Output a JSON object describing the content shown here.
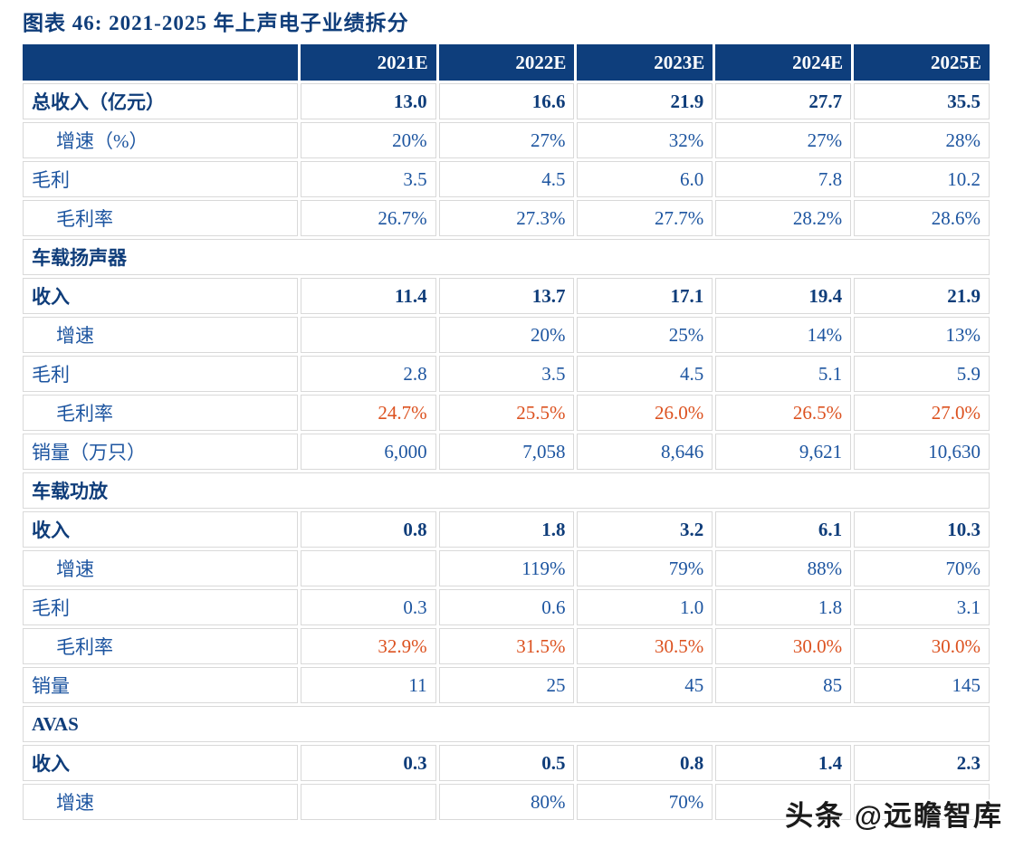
{
  "title": "图表 46: 2021-2025 年上声电子业绩拆分",
  "watermark": {
    "text": "头条 @远瞻智库"
  },
  "colors": {
    "header_bg": "#0E3E7C",
    "header_text": "#FFFFFF",
    "text_dark_navy": "#0F3D7A",
    "text_blue": "#1D55A0",
    "text_orange": "#DC5220",
    "grid_line": "#D9D9D9"
  },
  "chart_data": {
    "type": "table",
    "columns": [
      "",
      "2021E",
      "2022E",
      "2023E",
      "2024E",
      "2025E"
    ],
    "rows": [
      {
        "kind": "data",
        "label": "总收入（亿元）",
        "indent": false,
        "emphasis": "bold",
        "values": [
          "13.0",
          "16.6",
          "21.9",
          "27.7",
          "35.5"
        ]
      },
      {
        "kind": "data",
        "label": "增速（%）",
        "indent": true,
        "emphasis": "normal",
        "values": [
          "20%",
          "27%",
          "32%",
          "27%",
          "28%"
        ]
      },
      {
        "kind": "data",
        "label": "毛利",
        "indent": false,
        "emphasis": "normal",
        "values": [
          "3.5",
          "4.5",
          "6.0",
          "7.8",
          "10.2"
        ]
      },
      {
        "kind": "data",
        "label": "毛利率",
        "indent": true,
        "emphasis": "normal",
        "values": [
          "26.7%",
          "27.3%",
          "27.7%",
          "28.2%",
          "28.6%"
        ]
      },
      {
        "kind": "section",
        "label": "车载扬声器"
      },
      {
        "kind": "data",
        "label": "收入",
        "indent": false,
        "emphasis": "bold",
        "values": [
          "11.4",
          "13.7",
          "17.1",
          "19.4",
          "21.9"
        ]
      },
      {
        "kind": "data",
        "label": "增速",
        "indent": true,
        "emphasis": "normal",
        "values": [
          "",
          "20%",
          "25%",
          "14%",
          "13%"
        ]
      },
      {
        "kind": "data",
        "label": "毛利",
        "indent": false,
        "emphasis": "normal",
        "values": [
          "2.8",
          "3.5",
          "4.5",
          "5.1",
          "5.9"
        ]
      },
      {
        "kind": "data",
        "label": "毛利率",
        "indent": true,
        "emphasis": "orange",
        "values": [
          "24.7%",
          "25.5%",
          "26.0%",
          "26.5%",
          "27.0%"
        ]
      },
      {
        "kind": "data",
        "label": "销量（万只）",
        "indent": false,
        "emphasis": "normal",
        "values": [
          "6,000",
          "7,058",
          "8,646",
          "9,621",
          "10,630"
        ]
      },
      {
        "kind": "section",
        "label": "车载功放"
      },
      {
        "kind": "data",
        "label": "收入",
        "indent": false,
        "emphasis": "bold",
        "values": [
          "0.8",
          "1.8",
          "3.2",
          "6.1",
          "10.3"
        ]
      },
      {
        "kind": "data",
        "label": "增速",
        "indent": true,
        "emphasis": "normal",
        "values": [
          "",
          "119%",
          "79%",
          "88%",
          "70%"
        ]
      },
      {
        "kind": "data",
        "label": "毛利",
        "indent": false,
        "emphasis": "normal",
        "values": [
          "0.3",
          "0.6",
          "1.0",
          "1.8",
          "3.1"
        ]
      },
      {
        "kind": "data",
        "label": "毛利率",
        "indent": true,
        "emphasis": "orange",
        "values": [
          "32.9%",
          "31.5%",
          "30.5%",
          "30.0%",
          "30.0%"
        ]
      },
      {
        "kind": "data",
        "label": "销量",
        "indent": false,
        "emphasis": "normal",
        "values": [
          "11",
          "25",
          "45",
          "85",
          "145"
        ]
      },
      {
        "kind": "section",
        "label": "AVAS"
      },
      {
        "kind": "data",
        "label": "收入",
        "indent": false,
        "emphasis": "bold",
        "values": [
          "0.3",
          "0.5",
          "0.8",
          "1.4",
          "2.3"
        ]
      },
      {
        "kind": "data",
        "label": "增速",
        "indent": true,
        "emphasis": "normal",
        "values": [
          "",
          "80%",
          "70%",
          "",
          ""
        ]
      }
    ]
  }
}
